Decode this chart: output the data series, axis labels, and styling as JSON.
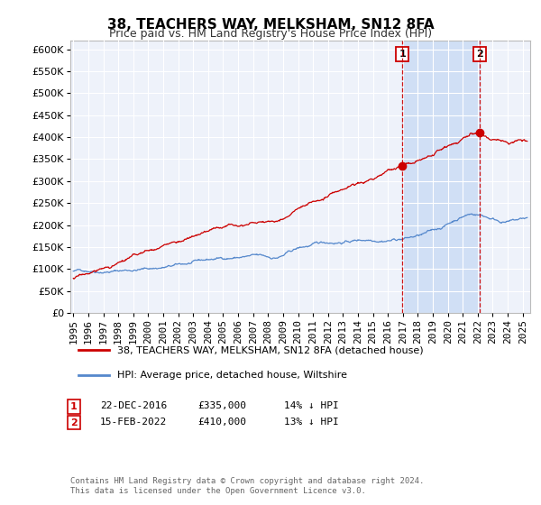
{
  "title": "38, TEACHERS WAY, MELKSHAM, SN12 8FA",
  "subtitle": "Price paid vs. HM Land Registry's House Price Index (HPI)",
  "ylim": [
    0,
    620000
  ],
  "yticks": [
    0,
    50000,
    100000,
    150000,
    200000,
    250000,
    300000,
    350000,
    400000,
    450000,
    500000,
    550000,
    600000
  ],
  "xlim_start": 1994.8,
  "xlim_end": 2025.5,
  "background_color": "#ffffff",
  "plot_bg_color": "#eef2fa",
  "shade_color": "#d0dff5",
  "grid_color": "#ffffff",
  "sale1_x": 2016.97,
  "sale1_y": 335000,
  "sale2_x": 2022.12,
  "sale2_y": 410000,
  "sale1_date": "22-DEC-2016",
  "sale1_price": "£335,000",
  "sale1_hpi": "14% ↓ HPI",
  "sale2_date": "15-FEB-2022",
  "sale2_price": "£410,000",
  "sale2_hpi": "13% ↓ HPI",
  "line1_label": "38, TEACHERS WAY, MELKSHAM, SN12 8FA (detached house)",
  "line2_label": "HPI: Average price, detached house, Wiltshire",
  "line1_color": "#cc0000",
  "line2_color": "#5588cc",
  "vline_color": "#cc0000",
  "marker_color": "#cc0000",
  "footnote": "Contains HM Land Registry data © Crown copyright and database right 2024.\nThis data is licensed under the Open Government Licence v3.0.",
  "title_fontsize": 11,
  "subtitle_fontsize": 9,
  "tick_fontsize": 8,
  "legend_fontsize": 8,
  "info_fontsize": 8
}
